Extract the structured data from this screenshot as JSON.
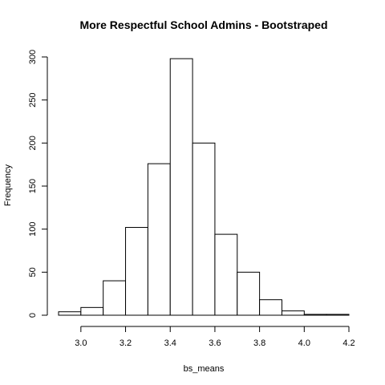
{
  "chart_data": {
    "type": "histogram",
    "title": "More Respectful School Admins - Bootstraped",
    "xlabel": "bs_means",
    "ylabel": "Frequency",
    "bin_edges": [
      2.9,
      3.0,
      3.1,
      3.2,
      3.3,
      3.4,
      3.5,
      3.6,
      3.7,
      3.8,
      3.9,
      4.0,
      4.1,
      4.2
    ],
    "counts": [
      4,
      9,
      40,
      102,
      176,
      298,
      200,
      94,
      50,
      18,
      5,
      1,
      1
    ],
    "xlim": [
      2.9,
      4.2
    ],
    "ylim": [
      0,
      300
    ],
    "x_ticks": [
      3.0,
      3.2,
      3.4,
      3.6,
      3.8,
      4.0,
      4.2
    ],
    "x_tick_labels": [
      "3.0",
      "3.2",
      "3.4",
      "3.6",
      "3.8",
      "4.0",
      "4.2"
    ],
    "y_ticks": [
      0,
      50,
      100,
      150,
      200,
      250,
      300
    ],
    "y_tick_labels": [
      "0",
      "50",
      "100",
      "150",
      "200",
      "250",
      "300"
    ],
    "grid": false,
    "bar_fill": "#ffffff",
    "bar_stroke": "#000000"
  }
}
